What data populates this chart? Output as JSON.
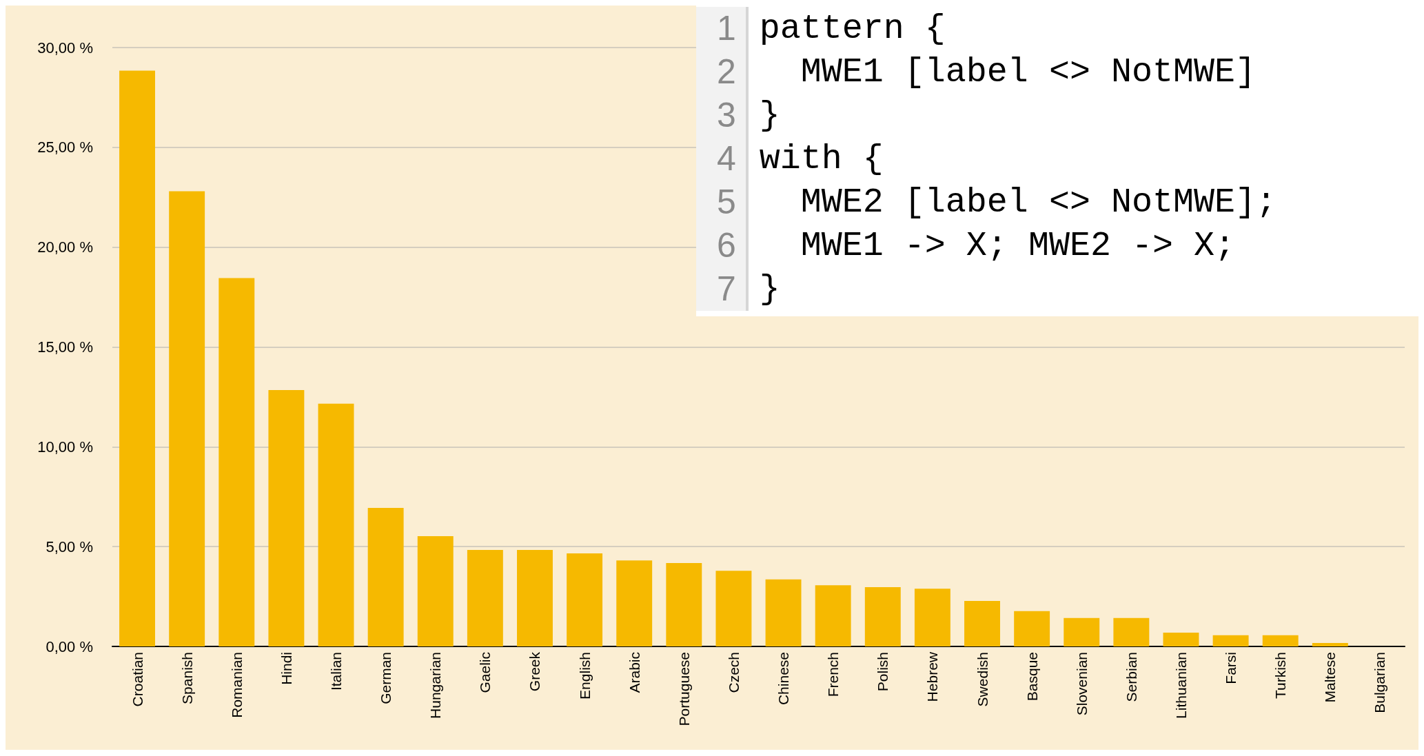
{
  "chart_data": {
    "type": "bar",
    "categories": [
      "Croatian",
      "Spanish",
      "Romanian",
      "Hindi",
      "Italian",
      "German",
      "Hungarian",
      "Gaelic",
      "Greek",
      "English",
      "Arabic",
      "Portuguese",
      "Czech",
      "Chinese",
      "French",
      "Polish",
      "Hebrew",
      "Swedish",
      "Basque",
      "Slovenian",
      "Serbian",
      "Lithuanian",
      "Farsi",
      "Turkish",
      "Maltese",
      "Bulgarian"
    ],
    "values": [
      28.84,
      22.8,
      18.45,
      12.84,
      12.16,
      6.94,
      5.52,
      4.83,
      4.83,
      4.66,
      4.31,
      4.18,
      3.79,
      3.36,
      3.06,
      2.97,
      2.89,
      2.28,
      1.77,
      1.42,
      1.42,
      0.69,
      0.56,
      0.56,
      0.17,
      0
    ],
    "color": "#f6b900",
    "ylim": [
      0,
      30
    ],
    "yticks": [
      {
        "value": 0,
        "label": "0,00 %"
      },
      {
        "value": 5,
        "label": "5,00 %"
      },
      {
        "value": 10,
        "label": "10,00 %"
      },
      {
        "value": 15,
        "label": "15,00 %"
      },
      {
        "value": 20,
        "label": "20,00 %"
      },
      {
        "value": 25,
        "label": "25,00 %"
      },
      {
        "value": 30,
        "label": "30,00 %"
      }
    ],
    "grid": "y",
    "annotations": [
      "1 pattern {",
      "2   MWE1 [label <> NotMWE]",
      "3 }",
      "4 with {",
      "5   MWE2 [label <> NotMWE];",
      "6   MWE1 -> X; MWE2 -> X;",
      "7 }"
    ]
  }
}
